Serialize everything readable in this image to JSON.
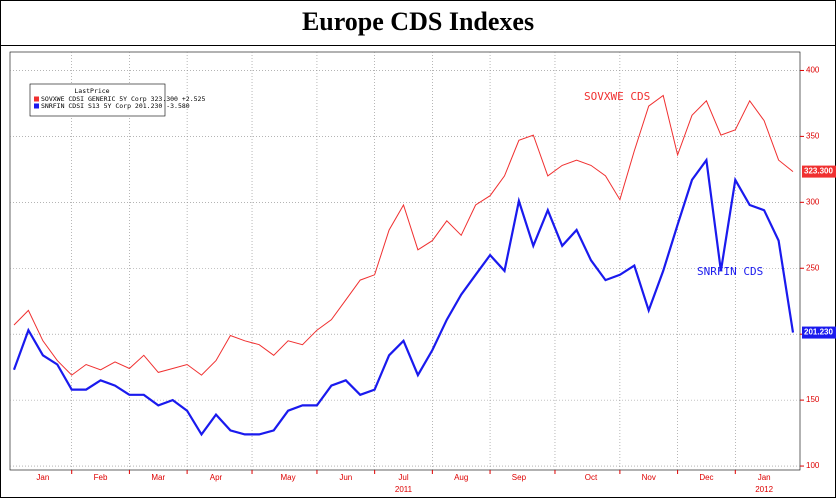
{
  "chart_data": {
    "type": "line",
    "title": "Europe CDS Indexes",
    "categories": [
      null,
      null,
      "Jan",
      null,
      null,
      null,
      "Feb",
      null,
      null,
      null,
      "Mar",
      null,
      null,
      null,
      "Apr",
      null,
      null,
      null,
      null,
      "May",
      null,
      null,
      null,
      "Jun",
      null,
      null,
      null,
      "Jul",
      null,
      null,
      null,
      "Aug",
      null,
      null,
      null,
      "Sep",
      null,
      null,
      null,
      null,
      "Oct",
      null,
      null,
      null,
      "Nov",
      null,
      null,
      null,
      "Dec",
      null,
      null,
      null,
      "Jan",
      null,
      null
    ],
    "year_labels": [
      {
        "category": 27,
        "label": "2011"
      },
      {
        "category": 52,
        "label": "2012"
      }
    ],
    "series": [
      {
        "name": "SOVXWE CDS",
        "color": "#f03030",
        "width": 1,
        "legend": "SOVXWE CDSI GENERIC 5Y Corp 323.300 +2.525",
        "last_label": "323.300",
        "values": [
          207,
          218,
          195,
          180,
          169,
          177,
          173,
          179,
          174,
          184,
          171,
          174,
          177,
          169,
          180,
          199,
          195,
          192,
          184,
          195,
          192,
          203,
          211,
          226,
          241,
          245,
          279,
          298,
          264,
          271,
          286,
          275,
          298,
          305,
          320,
          347,
          351,
          320,
          328,
          332,
          328,
          320,
          302,
          339,
          373,
          381,
          336,
          366,
          377,
          351,
          355,
          377,
          362,
          332,
          323.3
        ]
      },
      {
        "name": "SNRFIN CDS",
        "color": "#1a1aee",
        "width": 2.2,
        "legend": "SNRFIN CDSI S13 5Y Corp 201.230 -3.580",
        "last_label": "201.230",
        "values": [
          173,
          203,
          184,
          177,
          158,
          158,
          165,
          161,
          154,
          154,
          146,
          150,
          142,
          124,
          139,
          127,
          124,
          124,
          127,
          142,
          146,
          146,
          161,
          165,
          154,
          158,
          184,
          195,
          169,
          188,
          211,
          230,
          245,
          260,
          248,
          301,
          267,
          294,
          267,
          279,
          256,
          241,
          245,
          252,
          218,
          248,
          283,
          317,
          332,
          248,
          317,
          298,
          294,
          271,
          201.23
        ]
      }
    ],
    "legend_title": "LastPrice",
    "ylim": [
      97,
      414
    ],
    "yticks": [
      100,
      150,
      200,
      250,
      300,
      350,
      400
    ],
    "grid": true
  }
}
